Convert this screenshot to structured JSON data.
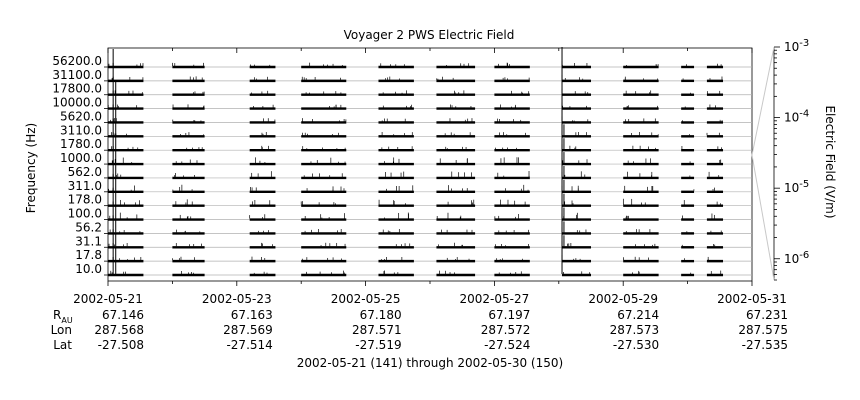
{
  "chart_data": {
    "type": "line",
    "title": "Voyager 2 PWS Electric Field",
    "ylabel": "Frequency (Hz)",
    "right_label": "Electric Field (V/m)",
    "frequency_channels": [
      "10.0",
      "17.8",
      "31.1",
      "56.2",
      "100.0",
      "178.0",
      "311.0",
      "562.0",
      "1000.0",
      "1780.0",
      "3110.0",
      "5620.0",
      "10000.0",
      "17800.0",
      "31100.0",
      "56200.0"
    ],
    "right_axis": {
      "scale": "log",
      "range": [
        5e-07,
        0.001
      ],
      "ticks": [
        {
          "value": 1e-06,
          "base": "10",
          "exp": "-6"
        },
        {
          "value": 1e-05,
          "base": "10",
          "exp": "-5"
        },
        {
          "value": 0.0001,
          "base": "10",
          "exp": "-4"
        },
        {
          "value": 0.001,
          "base": "10",
          "exp": "-3"
        }
      ]
    },
    "x_range_days": [
      "2002-05-21",
      "2002-05-31"
    ],
    "x_tick_dates": [
      "2002-05-21",
      "2002-05-23",
      "2002-05-25",
      "2002-05-27",
      "2002-05-29",
      "2002-05-31"
    ],
    "x_tick_offsets_days": [
      0,
      2,
      4,
      6,
      8,
      10
    ],
    "minor_tick_offsets_days": [
      1,
      3,
      5,
      7,
      9
    ],
    "data_segments_days": [
      [
        0.0,
        0.55
      ],
      [
        1.0,
        1.5
      ],
      [
        2.2,
        2.6
      ],
      [
        3.0,
        3.7
      ],
      [
        4.2,
        4.75
      ],
      [
        5.1,
        5.7
      ],
      [
        6.0,
        6.55
      ],
      [
        7.05,
        7.5
      ],
      [
        8.0,
        8.55
      ],
      [
        8.9,
        9.1
      ],
      [
        9.3,
        9.55
      ]
    ],
    "ephemeris": {
      "row_labels": {
        "r": "R",
        "r_sub": "AU",
        "lon": "Lon",
        "lat": "Lat"
      },
      "R": [
        "67.146",
        "67.163",
        "67.180",
        "67.197",
        "67.214",
        "67.231"
      ],
      "Lon": [
        "287.568",
        "287.569",
        "287.571",
        "287.572",
        "287.573",
        "287.575"
      ],
      "Lat": [
        "-27.508",
        "-27.514",
        "-27.519",
        "-27.524",
        "-27.530",
        "-27.535"
      ]
    },
    "footer": "2002-05-21 (141) through 2002-05-30 (150)"
  }
}
